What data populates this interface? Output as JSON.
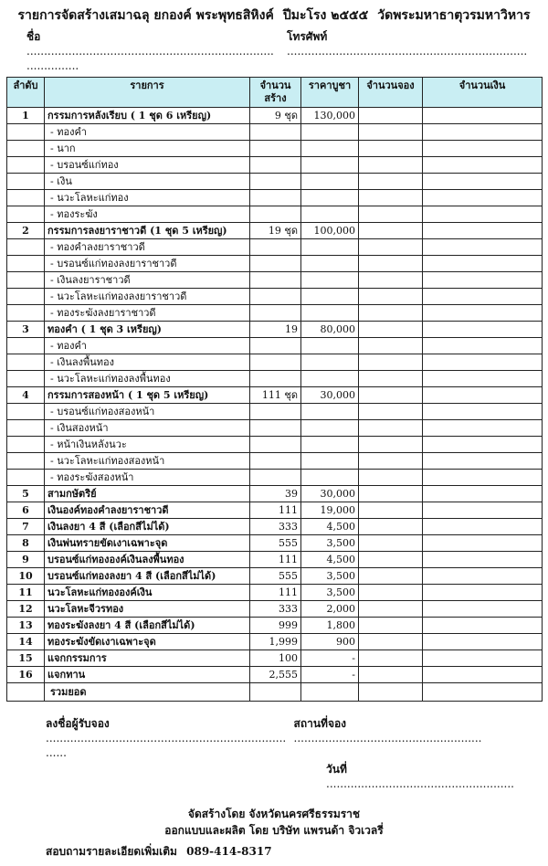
{
  "header": {
    "title_parts": [
      "รายการจัดสร้างเสมาฉลุ ยกองค์ พระพุทธสิหิงค์",
      "ปีมะโรง ๒๕๕๕",
      "วัดพระมหาธาตุวรมหาวิหาร"
    ],
    "name_label": "ชื่อ",
    "phone_label": "โทรศัพท์",
    "name_dots": "......................................................................................",
    "phone_dots": "....................................................................."
  },
  "table": {
    "header_bg": "#c9eef3",
    "columns": [
      "ลำดับ",
      "รายการ",
      "จำนวนสร้าง",
      "ราคาบูชา",
      "จำนวนจอง",
      "จำนวนเงิน"
    ],
    "rows": [
      {
        "type": "main",
        "no": "1",
        "item": "กรรมการหลังเรียบ   ( 1 ชุด 6 เหรียญ)",
        "qty": "9 ชุด",
        "price": "130,000"
      },
      {
        "type": "sub",
        "item": "- ทองคำ"
      },
      {
        "type": "sub",
        "item": "-  นาก"
      },
      {
        "type": "sub",
        "item": "- บรอนซ์แก่ทอง"
      },
      {
        "type": "sub",
        "item": "- เงิน"
      },
      {
        "type": "sub",
        "item": "- นวะโลหะแก่ทอง"
      },
      {
        "type": "sub",
        "item": "- ทองระฆัง"
      },
      {
        "type": "main",
        "no": "2",
        "item": "กรรมการลงยาราชาวดี (1 ชุด 5 เหรียญ)",
        "qty": "19 ชุด",
        "price": "100,000"
      },
      {
        "type": "sub",
        "item": "- ทองคำลงยาราชาวดี"
      },
      {
        "type": "sub",
        "item": "- บรอนซ์แก่ทองลงยาราชาวดี"
      },
      {
        "type": "sub",
        "item": "- เงินลงยาราชาวดี"
      },
      {
        "type": "sub",
        "item": "- นวะโลหะแก่ทองลงยาราชาวดี"
      },
      {
        "type": "sub",
        "item": "- ทองระฆังลงยาราชาวดี"
      },
      {
        "type": "main",
        "no": "3",
        "item": "ทองคำ ( 1 ชุด 3 เหรียญ)",
        "qty": "19",
        "price": "80,000"
      },
      {
        "type": "sub",
        "item": "- ทองคำ"
      },
      {
        "type": "sub",
        "item": "- เงินลงพื้นทอง"
      },
      {
        "type": "sub",
        "item": "- นวะโลหะแก่ทองลงพื้นทอง"
      },
      {
        "type": "main",
        "no": "4",
        "item": "กรรมการสองหน้า ( 1 ชุด 5 เหรียญ)",
        "qty": "111 ชุด",
        "price": "30,000"
      },
      {
        "type": "sub",
        "item": "- บรอนซ์แก่ทองสองหน้า"
      },
      {
        "type": "sub",
        "item": "- เงินสองหน้า"
      },
      {
        "type": "sub",
        "item": "-  หน้าเงินหลังนวะ"
      },
      {
        "type": "sub",
        "item": "- นวะโลหะแก่ทองสองหน้า"
      },
      {
        "type": "sub",
        "item": "- ทองระฆังสองหน้า"
      },
      {
        "type": "main",
        "no": "5",
        "item": "สามกษัตริย์",
        "qty": "39",
        "price": "30,000"
      },
      {
        "type": "main",
        "no": "6",
        "item": "เงินองค์ทองคำลงยาราชาวดี",
        "qty": "111",
        "price": "19,000"
      },
      {
        "type": "main",
        "no": "7",
        "item": "เงินลงยา 4 สี    (เลือกสีไม่ได้)",
        "qty": "333",
        "price": "4,500"
      },
      {
        "type": "main",
        "no": "8",
        "item": "เงินพ่นทรายขัดเงาเฉพาะจุด",
        "qty": "555",
        "price": "3,500"
      },
      {
        "type": "main",
        "no": "9",
        "item": "บรอนซ์แก่ทององค์เงินลงพื้นทอง",
        "qty": "111",
        "price": "4,500"
      },
      {
        "type": "main",
        "no": "10",
        "item": "บรอนซ์แก่ทองลงยา 4 สี (เลือกสีไม่ได้)",
        "qty": "555",
        "price": "3,500"
      },
      {
        "type": "main",
        "no": "11",
        "item": "นวะโลหะแก่ทององค์เงิน",
        "qty": "111",
        "price": "3,500"
      },
      {
        "type": "main",
        "no": "12",
        "item": "นวะโลหะจีวรทอง",
        "qty": "333",
        "price": "2,000"
      },
      {
        "type": "main",
        "no": "13",
        "item": "ทองระฆังลงยา 4 สี (เลือกสีไม่ได้)",
        "qty": "999",
        "price": "1,800"
      },
      {
        "type": "main",
        "no": "14",
        "item": "ทองระฆังขัดเงาเฉพาะจุด",
        "qty": "1,999",
        "price": "900"
      },
      {
        "type": "main",
        "no": "15",
        "item": "แจกกรรมการ",
        "qty": "100",
        "price": "-"
      },
      {
        "type": "main",
        "no": "16",
        "item": "แจกทาน",
        "qty": "2,555",
        "price": "-"
      },
      {
        "type": "total",
        "item": "รวมยอด"
      }
    ]
  },
  "footer": {
    "signer_label": "ลงชื่อผู้รับจอง",
    "signer_dots": "...........................................................................",
    "place_label": "สถานที่จอง",
    "place_dots": "......................................................",
    "date_label": "วันที่",
    "date_dots": "......................................................",
    "made_by": "จัดสร้างโดย จังหวัดนครศรีธรรมราช",
    "designed_by": "ออกแบบและผลิต โดย บริษัท แพรนด้า จิวเวลรี่",
    "contact_label": "สอบถามรายละเอียดเพิ่มเติม",
    "contact_phone": "089-414-8317"
  }
}
